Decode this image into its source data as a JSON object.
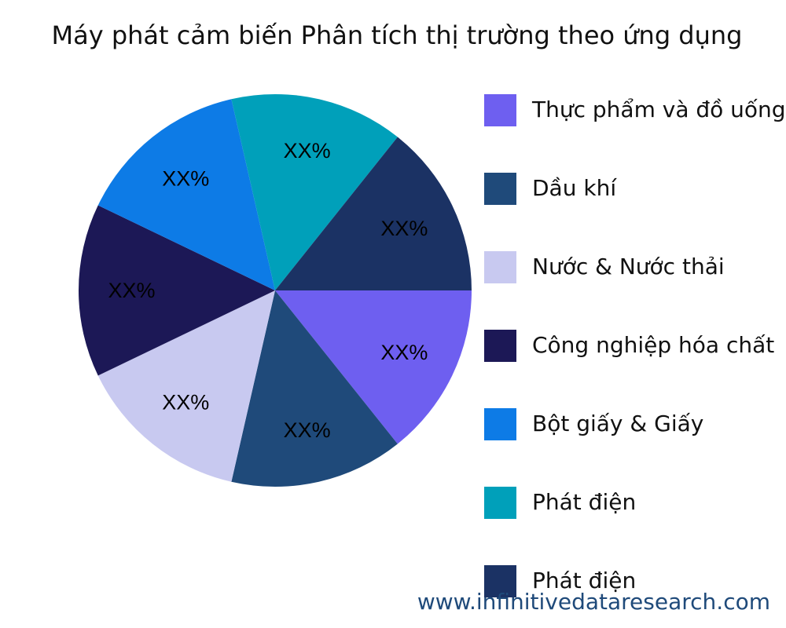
{
  "chart_data": {
    "type": "pie",
    "title": "Máy phát cảm biến Phân tích thị trường theo ứng dụng",
    "legend_position": "right",
    "slices": [
      {
        "label": "Thực phẩm và đồ uống",
        "value": 1,
        "data_label": "XX%",
        "color": "#6E5FF0"
      },
      {
        "label": "Dầu khí",
        "value": 1,
        "data_label": "XX%",
        "color": "#1F4A7A"
      },
      {
        "label": "Nước & Nước thải",
        "value": 1,
        "data_label": "XX%",
        "color": "#C8C9F0"
      },
      {
        "label": "Công nghiệp hóa chất",
        "value": 1,
        "data_label": "XX%",
        "color": "#1C1856"
      },
      {
        "label": "Bột giấy & Giấy",
        "value": 1,
        "data_label": "XX%",
        "color": "#0D7BE6"
      },
      {
        "label": "Phát điện",
        "value": 1,
        "data_label": "XX%",
        "color": "#00A0BA"
      },
      {
        "label": "Phát điện",
        "value": 1,
        "data_label": "XX%",
        "color": "#1B3264"
      }
    ]
  },
  "watermark": "www.infinitivedataresearch.com"
}
